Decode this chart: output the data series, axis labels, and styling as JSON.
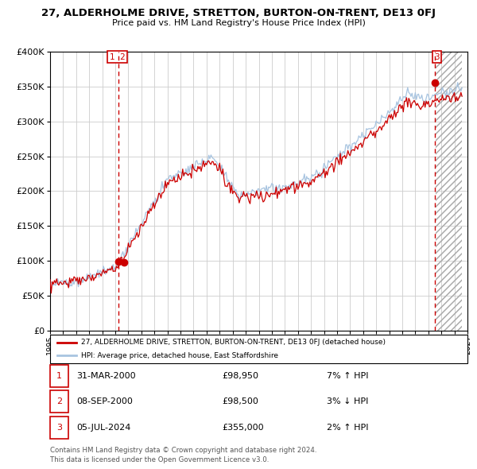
{
  "title": "27, ALDERHOLME DRIVE, STRETTON, BURTON-ON-TRENT, DE13 0FJ",
  "subtitle": "Price paid vs. HM Land Registry's House Price Index (HPI)",
  "legend_line1": "27, ALDERHOLME DRIVE, STRETTON, BURTON-ON-TRENT, DE13 0FJ (detached house)",
  "legend_line2": "HPI: Average price, detached house, East Staffordshire",
  "table_rows": [
    {
      "num": "1",
      "date": "31-MAR-2000",
      "price": "£98,950",
      "hpi": "7% ↑ HPI"
    },
    {
      "num": "2",
      "date": "08-SEP-2000",
      "price": "£98,500",
      "hpi": "3% ↓ HPI"
    },
    {
      "num": "3",
      "date": "05-JUL-2024",
      "price": "£355,000",
      "hpi": "2% ↑ HPI"
    }
  ],
  "footer_line1": "Contains HM Land Registry data © Crown copyright and database right 2024.",
  "footer_line2": "This data is licensed under the Open Government Licence v3.0.",
  "sale1_x": 2000.25,
  "sale1_y": 98950,
  "sale2_x": 2000.69,
  "sale2_y": 98500,
  "sale3_x": 2024.5,
  "sale3_y": 355000,
  "dashed_x1": 2000.25,
  "dashed_x2": 2024.5,
  "xmin": 1995,
  "xmax": 2027,
  "ymin": 0,
  "ymax": 400000,
  "yticks": [
    0,
    50000,
    100000,
    150000,
    200000,
    250000,
    300000,
    350000,
    400000
  ],
  "ytick_labels": [
    "£0",
    "£50K",
    "£100K",
    "£150K",
    "£200K",
    "£250K",
    "£300K",
    "£350K",
    "£400K"
  ],
  "hpi_color": "#a8c4e0",
  "price_color": "#cc0000",
  "dashed_color": "#cc0000",
  "grid_color": "#cccccc",
  "bg_color": "#ffffff"
}
